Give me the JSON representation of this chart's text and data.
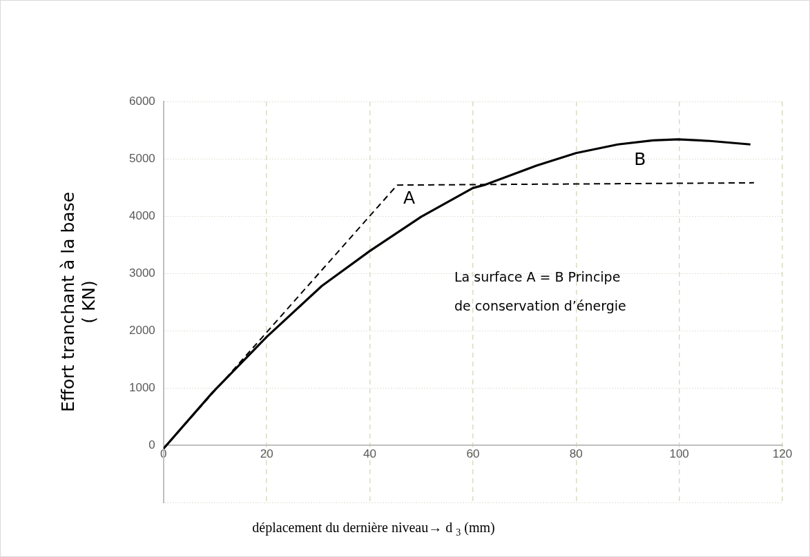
{
  "chart_data": {
    "type": "line",
    "xlabel": "déplacement du dernière niveau→ d $_{3}$ (mm)",
    "ylabel": "Effort tranchant à la base\n( KN)",
    "xlim": [
      0,
      120
    ],
    "xticks": [
      0,
      20,
      40,
      60,
      80,
      100,
      120
    ],
    "ylim": [
      -1000,
      6000
    ],
    "yticks": [
      {
        "value": -1000,
        "label": null
      },
      0,
      1000,
      2000,
      3000,
      4000,
      5000,
      6000
    ],
    "grid": true,
    "legend": false,
    "marker": "none",
    "series": [
      {
        "color": "#000000",
        "line_style": "solid",
        "x": [
          0,
          9.5,
          20,
          30.7,
          40,
          50,
          60,
          62.5,
          72.3,
          80,
          88.1,
          94.9,
          99.8,
          106,
          113.8
        ],
        "values": [
          -60,
          920,
          1890,
          2780,
          3390,
          3990,
          4490,
          4550,
          4880,
          5100,
          5250,
          5320,
          5340,
          5310,
          5250
        ]
      },
      {
        "color": "#000000",
        "line_style": "dashed",
        "x": [
          0,
          45.3,
          114.5
        ],
        "values": [
          -60,
          4540,
          4580
        ]
      }
    ],
    "annotations": [
      "A",
      "B",
      "La surface A = B Principe de conservation d’énergie"
    ]
  }
}
